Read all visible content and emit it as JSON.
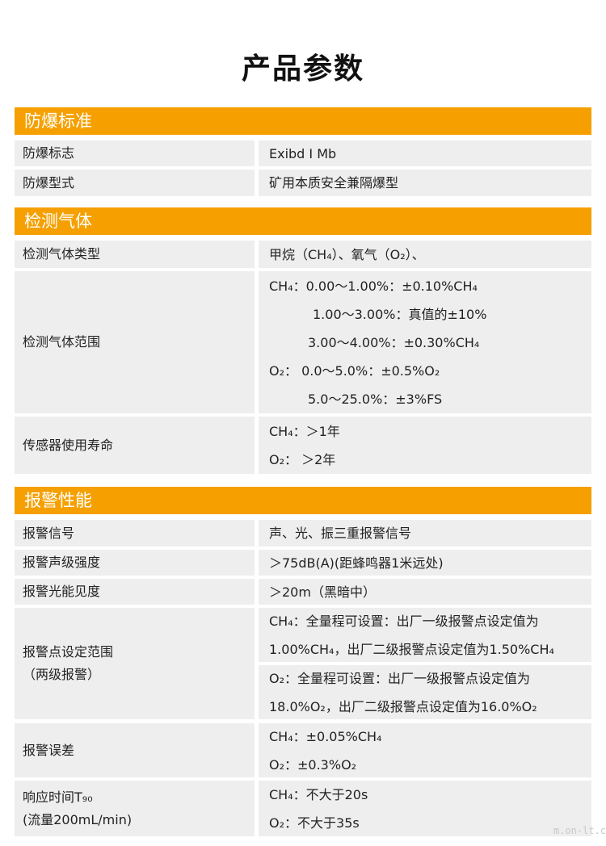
{
  "title": "产品参数",
  "sections": [
    {
      "heading": "防爆标准",
      "rows": [
        {
          "label": [
            "防爆标志"
          ],
          "value": [
            "Exibd I Mb"
          ]
        },
        {
          "label": [
            "防爆型式"
          ],
          "value": [
            "矿用本质安全兼隔爆型"
          ]
        }
      ]
    },
    {
      "heading": "检测气体",
      "rows": [
        {
          "label": [
            "检测气体类型"
          ],
          "value": [
            "甲烷（CH₄）、氧气（O₂）、"
          ]
        },
        {
          "label": [
            "检测气体范围"
          ],
          "value": [
            "CH₄：0.00～1.00%：±0.10%CH₄",
            "1.00～3.00%：真值的±10%",
            "3.00～4.00%：±0.30%CH₄",
            "O₂：  0.0～5.0%：±0.5%O₂",
            "5.0～25.0%：±3%FS"
          ]
        },
        {
          "label": [
            "传感器使用寿命"
          ],
          "value": [
            "CH₄：＞1年",
            "O₂：  ＞2年"
          ]
        }
      ]
    },
    {
      "heading": "报警性能",
      "rows": [
        {
          "label": [
            "报警信号"
          ],
          "value": [
            "声、光、振三重报警信号"
          ]
        },
        {
          "label": [
            "报警声级强度"
          ],
          "value": [
            "＞75dB(A)(距蜂鸣器1米远处)"
          ]
        },
        {
          "label": [
            "报警光能见度"
          ],
          "value": [
            "＞20m（黑暗中）"
          ]
        },
        {
          "label": [
            "报警点设定范围",
            "（两级报警）"
          ],
          "value": [
            "CH₄：全量程可设置：出厂一级报警点设定值为",
            "1.00%CH₄，出厂二级报警点设定值为1.50%CH₄",
            "O₂：全量程可设置：出厂一级报警点设定值为",
            "18.0%O₂，出厂二级报警点设定值为16.0%O₂"
          ]
        },
        {
          "label": [
            "报警误差"
          ],
          "value": [
            "CH₄：±0.05%CH₄",
            "O₂：±0.3%O₂"
          ]
        },
        {
          "label": [
            "响应时间T₉₀",
            "(流量200mL/min)"
          ],
          "value": [
            "CH₄：不大于20s",
            "O₂：不大于35s"
          ]
        }
      ]
    }
  ],
  "watermark": "m.on-lt.c"
}
